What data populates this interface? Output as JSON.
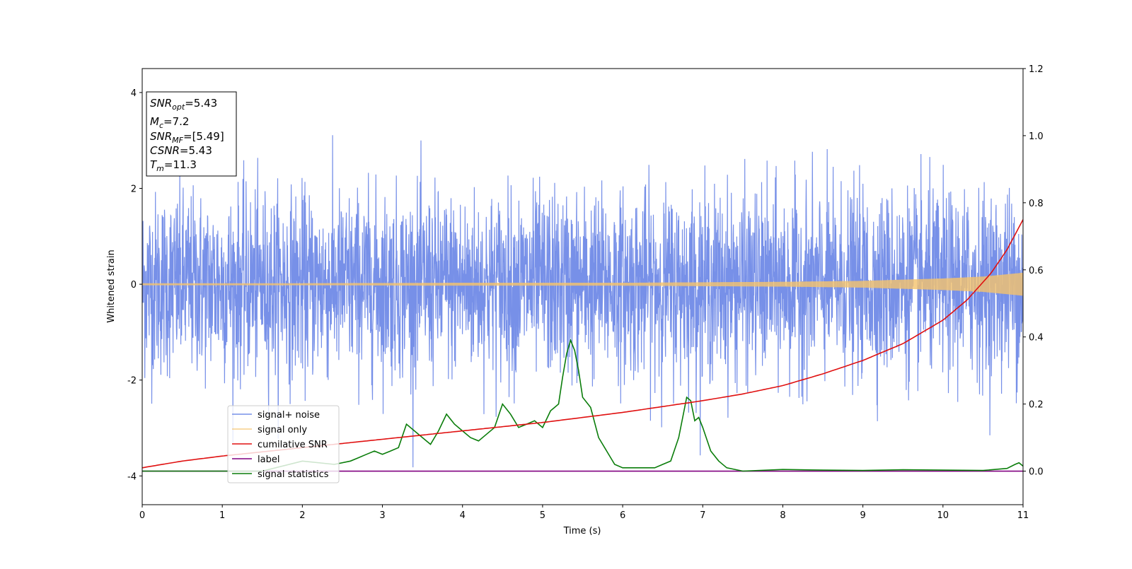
{
  "chart_data": {
    "type": "line",
    "xlabel": "Time (s)",
    "ylabel": "Whitened strain",
    "xlim": [
      0,
      11
    ],
    "ylim_left": [
      -4.6,
      4.5
    ],
    "ylim_right": [
      -0.1,
      1.2
    ],
    "xticks": [
      0,
      1,
      2,
      3,
      4,
      5,
      6,
      7,
      8,
      9,
      10,
      11
    ],
    "yticks_left": [
      -4,
      -2,
      0,
      2,
      4
    ],
    "yticks_right": [
      0.0,
      0.2,
      0.4,
      0.6,
      0.8,
      1.0,
      1.2
    ],
    "yticks_right_labels": [
      "0.0",
      "0.2",
      "0.4",
      "0.6",
      "0.8",
      "1.0",
      "1.2"
    ],
    "grid": false,
    "legend_position": "lower-left",
    "colors": {
      "noise": "#6b87e6",
      "signal": "#f5c36b",
      "csnr": "#e01010",
      "label": "#800080",
      "stats": "#0a7d0a"
    },
    "annotation": {
      "snr_opt": "5.43",
      "mc": "7.2",
      "snr_mf": "[5.49]",
      "csnr": "5.43",
      "tm": "11.3"
    },
    "series": [
      {
        "name": "signal+ noise",
        "axis": "left",
        "style": "noise",
        "approx_range": [
          -3.9,
          4.1
        ]
      },
      {
        "name": "signal only",
        "axis": "left",
        "style": "chirp",
        "envelope": {
          "x": [
            0,
            2,
            4,
            6,
            8,
            9,
            10,
            10.5,
            11
          ],
          "y": [
            0.02,
            0.02,
            0.03,
            0.03,
            0.05,
            0.07,
            0.12,
            0.16,
            0.24
          ]
        }
      },
      {
        "name": "cumilative SNR",
        "axis": "right",
        "x": [
          0,
          0.5,
          1,
          2,
          3,
          4,
          5,
          6,
          7,
          7.5,
          8,
          8.5,
          9,
          9.5,
          10,
          10.3,
          10.6,
          10.8,
          11
        ],
        "y": [
          0.01,
          0.03,
          0.045,
          0.07,
          0.095,
          0.12,
          0.145,
          0.175,
          0.21,
          0.23,
          0.255,
          0.29,
          0.33,
          0.38,
          0.45,
          0.51,
          0.59,
          0.66,
          0.75
        ]
      },
      {
        "name": "label",
        "axis": "right",
        "x": [
          0,
          11
        ],
        "y": [
          0.0,
          0.0
        ]
      },
      {
        "name": "signal statistics",
        "axis": "right",
        "x": [
          0,
          1.5,
          2.0,
          2.4,
          2.6,
          2.7,
          2.8,
          2.9,
          3.0,
          3.1,
          3.2,
          3.3,
          3.4,
          3.5,
          3.6,
          3.7,
          3.8,
          3.9,
          4.0,
          4.1,
          4.2,
          4.3,
          4.4,
          4.5,
          4.6,
          4.7,
          4.8,
          4.9,
          5.0,
          5.1,
          5.15,
          5.2,
          5.25,
          5.3,
          5.35,
          5.4,
          5.45,
          5.5,
          5.6,
          5.7,
          5.8,
          5.9,
          6.0,
          6.2,
          6.4,
          6.5,
          6.6,
          6.7,
          6.8,
          6.85,
          6.9,
          6.95,
          7.0,
          7.1,
          7.2,
          7.3,
          7.5,
          8.0,
          8.5,
          9.0,
          9.5,
          10.0,
          10.5,
          10.8,
          10.9,
          10.95,
          11.0
        ],
        "y": [
          0.0,
          0.0,
          0.03,
          0.02,
          0.03,
          0.04,
          0.05,
          0.06,
          0.05,
          0.06,
          0.07,
          0.14,
          0.12,
          0.1,
          0.08,
          0.12,
          0.17,
          0.14,
          0.12,
          0.1,
          0.09,
          0.11,
          0.13,
          0.2,
          0.17,
          0.13,
          0.14,
          0.15,
          0.13,
          0.18,
          0.19,
          0.2,
          0.28,
          0.35,
          0.39,
          0.36,
          0.3,
          0.22,
          0.19,
          0.1,
          0.06,
          0.02,
          0.01,
          0.01,
          0.01,
          0.02,
          0.03,
          0.1,
          0.22,
          0.21,
          0.15,
          0.16,
          0.13,
          0.06,
          0.03,
          0.01,
          0.0,
          0.005,
          0.003,
          0.002,
          0.004,
          0.003,
          0.002,
          0.008,
          0.02,
          0.025,
          0.015
        ]
      }
    ]
  }
}
